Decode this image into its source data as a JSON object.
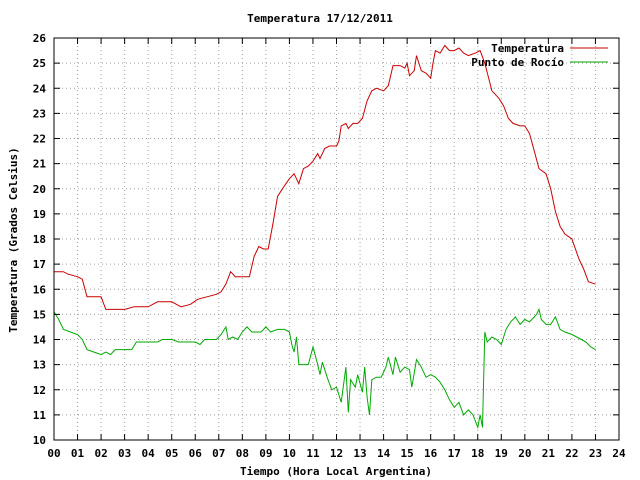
{
  "chart_data": {
    "type": "line",
    "title": "Temperatura 17/12/2011",
    "xlabel": "Tiempo (Hora Local Argentina)",
    "ylabel": "Temperatura (Grados Celsius)",
    "xlim": [
      0,
      24
    ],
    "ylim": [
      10,
      26
    ],
    "x_ticks": [
      "00",
      "01",
      "02",
      "03",
      "04",
      "05",
      "06",
      "07",
      "08",
      "09",
      "10",
      "11",
      "12",
      "13",
      "14",
      "15",
      "16",
      "17",
      "18",
      "19",
      "20",
      "21",
      "22",
      "23",
      "24"
    ],
    "y_ticks": [
      "10",
      "11",
      "12",
      "13",
      "14",
      "15",
      "16",
      "17",
      "18",
      "19",
      "20",
      "21",
      "22",
      "23",
      "24",
      "25",
      "26"
    ],
    "grid": true,
    "legend_position": "top-right",
    "series": [
      {
        "name": "Temperatura",
        "color": "#cc0000",
        "points": [
          [
            0.0,
            16.7
          ],
          [
            0.4,
            16.7
          ],
          [
            0.6,
            16.6
          ],
          [
            1.0,
            16.5
          ],
          [
            1.2,
            16.4
          ],
          [
            1.4,
            15.7
          ],
          [
            2.0,
            15.7
          ],
          [
            2.2,
            15.2
          ],
          [
            3.0,
            15.2
          ],
          [
            3.4,
            15.3
          ],
          [
            4.0,
            15.3
          ],
          [
            4.4,
            15.5
          ],
          [
            5.0,
            15.5
          ],
          [
            5.2,
            15.4
          ],
          [
            5.4,
            15.3
          ],
          [
            5.8,
            15.4
          ],
          [
            6.1,
            15.6
          ],
          [
            6.5,
            15.7
          ],
          [
            6.9,
            15.8
          ],
          [
            7.1,
            15.9
          ],
          [
            7.3,
            16.2
          ],
          [
            7.5,
            16.7
          ],
          [
            7.7,
            16.5
          ],
          [
            8.0,
            16.5
          ],
          [
            8.3,
            16.5
          ],
          [
            8.5,
            17.3
          ],
          [
            8.7,
            17.7
          ],
          [
            8.9,
            17.6
          ],
          [
            9.1,
            17.6
          ],
          [
            9.3,
            18.6
          ],
          [
            9.5,
            19.7
          ],
          [
            9.7,
            20.0
          ],
          [
            10.0,
            20.4
          ],
          [
            10.2,
            20.6
          ],
          [
            10.4,
            20.2
          ],
          [
            10.6,
            20.8
          ],
          [
            10.8,
            20.9
          ],
          [
            11.0,
            21.1
          ],
          [
            11.2,
            21.4
          ],
          [
            11.3,
            21.2
          ],
          [
            11.5,
            21.6
          ],
          [
            11.7,
            21.7
          ],
          [
            12.0,
            21.7
          ],
          [
            12.1,
            21.9
          ],
          [
            12.2,
            22.5
          ],
          [
            12.4,
            22.6
          ],
          [
            12.5,
            22.4
          ],
          [
            12.7,
            22.6
          ],
          [
            12.9,
            22.6
          ],
          [
            13.1,
            22.8
          ],
          [
            13.3,
            23.5
          ],
          [
            13.5,
            23.9
          ],
          [
            13.7,
            24.0
          ],
          [
            14.0,
            23.9
          ],
          [
            14.2,
            24.1
          ],
          [
            14.4,
            24.9
          ],
          [
            14.7,
            24.9
          ],
          [
            14.9,
            24.8
          ],
          [
            15.0,
            25.0
          ],
          [
            15.1,
            24.5
          ],
          [
            15.3,
            24.7
          ],
          [
            15.4,
            25.3
          ],
          [
            15.6,
            24.7
          ],
          [
            15.8,
            24.6
          ],
          [
            16.0,
            24.4
          ],
          [
            16.1,
            25.0
          ],
          [
            16.2,
            25.5
          ],
          [
            16.4,
            25.4
          ],
          [
            16.6,
            25.7
          ],
          [
            16.8,
            25.5
          ],
          [
            17.0,
            25.5
          ],
          [
            17.2,
            25.6
          ],
          [
            17.4,
            25.4
          ],
          [
            17.6,
            25.3
          ],
          [
            17.9,
            25.4
          ],
          [
            18.1,
            25.5
          ],
          [
            18.3,
            25.0
          ],
          [
            18.6,
            23.9
          ],
          [
            18.9,
            23.6
          ],
          [
            19.1,
            23.3
          ],
          [
            19.3,
            22.8
          ],
          [
            19.5,
            22.6
          ],
          [
            19.8,
            22.5
          ],
          [
            20.0,
            22.5
          ],
          [
            20.2,
            22.2
          ],
          [
            20.4,
            21.5
          ],
          [
            20.6,
            20.8
          ],
          [
            20.9,
            20.6
          ],
          [
            21.1,
            20.0
          ],
          [
            21.3,
            19.1
          ],
          [
            21.5,
            18.5
          ],
          [
            21.7,
            18.2
          ],
          [
            22.0,
            18.0
          ],
          [
            22.3,
            17.2
          ],
          [
            22.5,
            16.8
          ],
          [
            22.7,
            16.3
          ],
          [
            23.0,
            16.2
          ]
        ]
      },
      {
        "name": "Punto de Rocío",
        "color": "#00aa00",
        "points": [
          [
            0.0,
            15.1
          ],
          [
            0.2,
            14.8
          ],
          [
            0.4,
            14.4
          ],
          [
            0.7,
            14.3
          ],
          [
            1.0,
            14.2
          ],
          [
            1.2,
            14.0
          ],
          [
            1.4,
            13.6
          ],
          [
            1.7,
            13.5
          ],
          [
            2.0,
            13.4
          ],
          [
            2.2,
            13.5
          ],
          [
            2.4,
            13.4
          ],
          [
            2.6,
            13.6
          ],
          [
            2.8,
            13.6
          ],
          [
            3.0,
            13.6
          ],
          [
            3.3,
            13.6
          ],
          [
            3.5,
            13.9
          ],
          [
            4.0,
            13.9
          ],
          [
            4.4,
            13.9
          ],
          [
            4.6,
            14.0
          ],
          [
            5.0,
            14.0
          ],
          [
            5.3,
            13.9
          ],
          [
            5.6,
            13.9
          ],
          [
            6.0,
            13.9
          ],
          [
            6.2,
            13.8
          ],
          [
            6.4,
            14.0
          ],
          [
            6.6,
            14.0
          ],
          [
            6.9,
            14.0
          ],
          [
            7.1,
            14.2
          ],
          [
            7.3,
            14.5
          ],
          [
            7.4,
            14.0
          ],
          [
            7.6,
            14.1
          ],
          [
            7.8,
            14.0
          ],
          [
            8.0,
            14.3
          ],
          [
            8.2,
            14.5
          ],
          [
            8.4,
            14.3
          ],
          [
            8.6,
            14.3
          ],
          [
            8.8,
            14.3
          ],
          [
            9.0,
            14.5
          ],
          [
            9.2,
            14.3
          ],
          [
            9.5,
            14.4
          ],
          [
            9.8,
            14.4
          ],
          [
            10.0,
            14.3
          ],
          [
            10.1,
            13.8
          ],
          [
            10.2,
            13.5
          ],
          [
            10.3,
            14.1
          ],
          [
            10.4,
            13.0
          ],
          [
            10.7,
            13.0
          ],
          [
            10.8,
            13.0
          ],
          [
            11.0,
            13.7
          ],
          [
            11.2,
            13.0
          ],
          [
            11.3,
            12.6
          ],
          [
            11.4,
            13.1
          ],
          [
            11.6,
            12.5
          ],
          [
            11.8,
            12.0
          ],
          [
            12.0,
            12.1
          ],
          [
            12.2,
            11.5
          ],
          [
            12.4,
            12.9
          ],
          [
            12.5,
            11.1
          ],
          [
            12.6,
            12.4
          ],
          [
            12.8,
            12.1
          ],
          [
            12.9,
            12.6
          ],
          [
            13.1,
            11.9
          ],
          [
            13.2,
            12.9
          ],
          [
            13.3,
            11.7
          ],
          [
            13.4,
            11.0
          ],
          [
            13.5,
            12.4
          ],
          [
            13.7,
            12.5
          ],
          [
            13.9,
            12.5
          ],
          [
            14.1,
            12.9
          ],
          [
            14.2,
            13.3
          ],
          [
            14.4,
            12.6
          ],
          [
            14.5,
            13.3
          ],
          [
            14.7,
            12.7
          ],
          [
            14.9,
            12.9
          ],
          [
            15.1,
            12.8
          ],
          [
            15.2,
            12.1
          ],
          [
            15.4,
            13.2
          ],
          [
            15.6,
            12.9
          ],
          [
            15.8,
            12.5
          ],
          [
            16.0,
            12.6
          ],
          [
            16.2,
            12.5
          ],
          [
            16.4,
            12.3
          ],
          [
            16.6,
            12.0
          ],
          [
            16.8,
            11.6
          ],
          [
            17.0,
            11.3
          ],
          [
            17.2,
            11.5
          ],
          [
            17.4,
            11.0
          ],
          [
            17.6,
            11.2
          ],
          [
            17.8,
            11.0
          ],
          [
            18.0,
            10.5
          ],
          [
            18.1,
            11.0
          ],
          [
            18.2,
            10.5
          ],
          [
            18.3,
            14.3
          ],
          [
            18.4,
            13.9
          ],
          [
            18.6,
            14.1
          ],
          [
            18.8,
            14.0
          ],
          [
            19.0,
            13.8
          ],
          [
            19.2,
            14.4
          ],
          [
            19.4,
            14.7
          ],
          [
            19.6,
            14.9
          ],
          [
            19.8,
            14.6
          ],
          [
            20.0,
            14.8
          ],
          [
            20.2,
            14.7
          ],
          [
            20.4,
            14.9
          ],
          [
            20.5,
            15.0
          ],
          [
            20.6,
            15.2
          ],
          [
            20.7,
            14.8
          ],
          [
            20.9,
            14.6
          ],
          [
            21.1,
            14.6
          ],
          [
            21.3,
            14.9
          ],
          [
            21.5,
            14.4
          ],
          [
            21.7,
            14.3
          ],
          [
            22.0,
            14.2
          ],
          [
            22.2,
            14.1
          ],
          [
            22.4,
            14.0
          ],
          [
            22.6,
            13.9
          ],
          [
            22.8,
            13.7
          ],
          [
            23.0,
            13.6
          ]
        ]
      }
    ]
  }
}
